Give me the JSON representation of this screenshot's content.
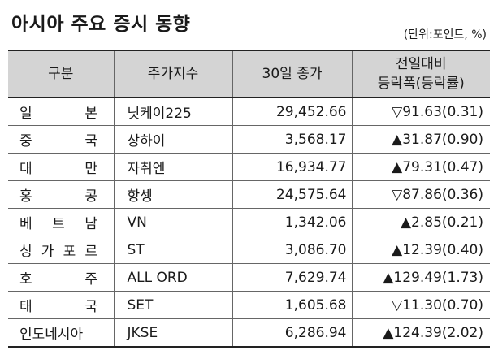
{
  "title": "아시아 주요 증시 동향",
  "unit": "(단위:포인트, %)",
  "headers": {
    "region": "구분",
    "index": "주가지수",
    "close": "30일 종가",
    "change_line1": "전일대비",
    "change_line2": "등락폭(등락률)"
  },
  "rows": [
    {
      "country": "일본",
      "index": "닛케이225",
      "close": "29,452.66",
      "change": "▽91.63(0.31)"
    },
    {
      "country": "중국",
      "index": "상하이",
      "close": "3,568.17",
      "change": "▲31.87(0.90)"
    },
    {
      "country": "대만",
      "index": "자취엔",
      "close": "16,934.77",
      "change": "▲79.31(0.47)"
    },
    {
      "country": "홍콩",
      "index": "항셍",
      "close": "24,575.64",
      "change": "▽87.86(0.36)"
    },
    {
      "country": "베트남",
      "index": "VN",
      "close": "1,342.06",
      "change": "▲2.85(0.21)"
    },
    {
      "country": "싱가포르",
      "index": "ST",
      "close": "3,086.70",
      "change": "▲12.39(0.40)"
    },
    {
      "country": "호주",
      "index": "ALL ORD",
      "close": "7,629.74",
      "change": "▲129.49(1.73)"
    },
    {
      "country": "태국",
      "index": "SET",
      "close": "1,605.68",
      "change": "▽11.30(0.70)"
    },
    {
      "country": "인도네시아",
      "index": "JKSE",
      "close": "6,286.94",
      "change": "▲124.39(2.02)"
    }
  ]
}
